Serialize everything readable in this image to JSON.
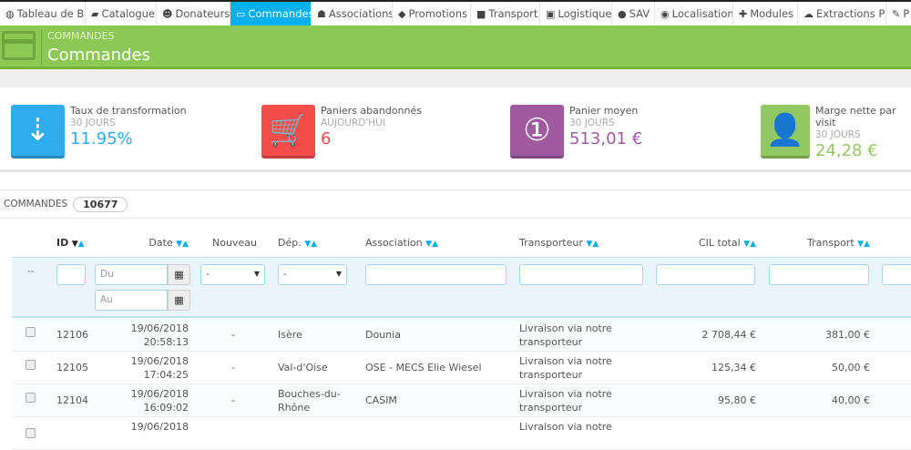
{
  "nav": {
    "tabs": [
      {
        "label": "Tableau de Bord",
        "icon": "dashboard-icon",
        "glyph": "◍",
        "w": 94
      },
      {
        "label": "Catalogue",
        "icon": "book-icon",
        "glyph": "▰",
        "w": 78
      },
      {
        "label": "Donateurs",
        "icon": "users-icon",
        "glyph": "☻",
        "w": 81
      },
      {
        "label": "Commandes",
        "icon": "credit-card-icon",
        "glyph": "▭",
        "w": 89,
        "active": true
      },
      {
        "label": "Associations",
        "icon": "group-icon",
        "glyph": "☗",
        "w": 89
      },
      {
        "label": "Promotions",
        "icon": "tag-icon",
        "glyph": "◆",
        "w": 86
      },
      {
        "label": "Transport",
        "icon": "truck-icon",
        "glyph": "■",
        "w": 76
      },
      {
        "label": "Logistique",
        "icon": "archive-icon",
        "glyph": "▣",
        "w": 79
      },
      {
        "label": "SAV",
        "icon": "comments-icon",
        "glyph": "●",
        "w": 47
      },
      {
        "label": "Localisation",
        "icon": "globe-icon",
        "glyph": "◉",
        "w": 86
      },
      {
        "label": "Modules",
        "icon": "puzzle-icon",
        "glyph": "✚",
        "w": 71
      },
      {
        "label": "Extractions PS",
        "icon": "cloud-download-icon",
        "glyph": "☁",
        "w": 97
      },
      {
        "label": "P",
        "icon": "wrench-icon",
        "glyph": "✎",
        "w": 40
      }
    ]
  },
  "header": {
    "breadcrumb": "COMMANDES",
    "title": "Commandes",
    "color": "#8bc954"
  },
  "kpis": [
    {
      "label": "Taux de transformation",
      "sub": "30 JOURS",
      "value": "11.95%",
      "color": "#2eacee",
      "icon": "sort-amount-down-icon",
      "glyph": "⇣"
    },
    {
      "label": "Paniers abandonnés",
      "sub": "AUJOURD'HUI",
      "value": "6",
      "color": "#f54c4c",
      "icon": "shopping-cart-icon",
      "glyph": "🛒"
    },
    {
      "label": "Panier moyen",
      "sub": "30 JOURS",
      "value": "513,01 €",
      "color": "#a05ba0",
      "icon": "money-icon",
      "glyph": "①"
    },
    {
      "label": "Marge nette par visit",
      "sub": "30 JOURS",
      "value": "24,28 €",
      "color": "#92c862",
      "icon": "user-icon",
      "glyph": "👤"
    }
  ],
  "orders": {
    "label": "COMMANDES",
    "count": "10677"
  },
  "table": {
    "columns": [
      "ID",
      "Date",
      "Nouveau",
      "Dép.",
      "Association",
      "Transporteur",
      "CIL total",
      "Transport"
    ],
    "filter": {
      "reset": "--",
      "date_from": "Du",
      "date_to": "Au",
      "nouveau": "-",
      "dep": "-"
    },
    "rows": [
      {
        "id": "12106",
        "date": "19/06/2018",
        "time": "20:58:13",
        "nouveau": "-",
        "dep": "Isère",
        "dep2": "",
        "assoc": "Dounia",
        "carrier": "Livraison via notre",
        "carrier2": "transporteur",
        "cil": "2 708,44 €",
        "transport": "381,00 €"
      },
      {
        "id": "12105",
        "date": "19/06/2018",
        "time": "17:04:25",
        "nouveau": "-",
        "dep": "Val-d'Oise",
        "dep2": "",
        "assoc": "OSE - MECS Elie Wiesel",
        "carrier": "Livraison via notre",
        "carrier2": "transporteur",
        "cil": "125,34 €",
        "transport": "50,00 €"
      },
      {
        "id": "12104",
        "date": "19/06/2018",
        "time": "16:09:02",
        "nouveau": "-",
        "dep": "Bouches-du-",
        "dep2": "Rhône",
        "assoc": "CASIM",
        "carrier": "Livraison via notre",
        "carrier2": "transporteur",
        "cil": "95,80 €",
        "transport": "40,00 €"
      },
      {
        "id": "",
        "date": "19/06/2018",
        "time": "",
        "nouveau": "",
        "dep": "",
        "dep2": "",
        "assoc": "",
        "carrier": "Livraison via notre",
        "carrier2": "",
        "cil": "",
        "transport": ""
      }
    ]
  }
}
